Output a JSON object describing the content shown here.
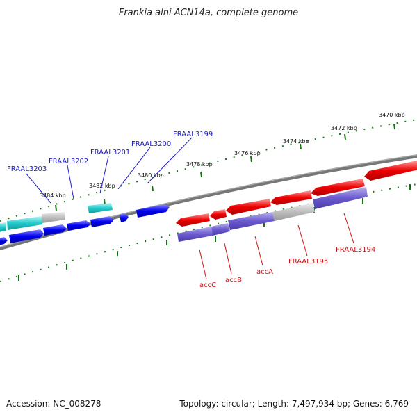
{
  "title": "Frankia alni ACN14a, complete genome",
  "footer": {
    "accession": "Accession: NC_008278",
    "summary": "Topology: circular; Length: 7,497,934 bp; Genes: 6,769"
  },
  "ticks": [
    "3470 kbp",
    "3472 kbp",
    "3474 kbp",
    "3476 kbp",
    "3478 kbp",
    "3480 kbp",
    "3482 kbp",
    "3484 kbp"
  ],
  "gene_labels_blue": [
    "FRAAL3199",
    "FRAAL3200",
    "FRAAL3201",
    "FRAAL3202",
    "FRAAL3203"
  ],
  "gene_labels_red": [
    "FRAAL3194",
    "FRAAL3195",
    "accA",
    "accB",
    "accC"
  ],
  "colors": {
    "forward_blue": "#0000ee",
    "forward_cyan": "#22cccc",
    "reverse_red": "#ee0000",
    "cds_purple": "#6a5acd",
    "other_gray": "#bdbdbd",
    "backbone": "#777777",
    "tick_green": "#117711"
  }
}
